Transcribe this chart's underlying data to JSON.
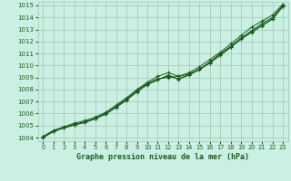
{
  "title": "Graphe pression niveau de la mer (hPa)",
  "bg_color": "#caf0e4",
  "plot_bg": "#caf0e4",
  "grid_color": "#aaccbb",
  "line_color": "#1a5c1a",
  "xlim": [
    -0.5,
    23.5
  ],
  "ylim": [
    1003.7,
    1015.3
  ],
  "yticks": [
    1004,
    1005,
    1006,
    1007,
    1008,
    1009,
    1010,
    1011,
    1012,
    1013,
    1014,
    1015
  ],
  "xticks": [
    0,
    1,
    2,
    3,
    4,
    5,
    6,
    7,
    8,
    9,
    10,
    11,
    12,
    13,
    14,
    15,
    16,
    17,
    18,
    19,
    20,
    21,
    22,
    23
  ],
  "series": [
    [
      1004.1,
      1004.6,
      1004.9,
      1005.2,
      1005.4,
      1005.7,
      1006.1,
      1006.7,
      1007.3,
      1008.0,
      1008.6,
      1009.1,
      1009.4,
      1009.1,
      1009.4,
      1009.9,
      1010.5,
      1011.1,
      1011.8,
      1012.5,
      1013.2,
      1013.7,
      1014.2,
      1015.1
    ],
    [
      1004.05,
      1004.55,
      1004.85,
      1005.1,
      1005.3,
      1005.6,
      1006.0,
      1006.6,
      1007.2,
      1007.9,
      1008.5,
      1008.9,
      1009.0,
      1009.1,
      1009.3,
      1009.7,
      1010.3,
      1011.0,
      1011.6,
      1012.3,
      1012.9,
      1013.5,
      1014.0,
      1015.0
    ],
    [
      1004.0,
      1004.5,
      1004.8,
      1005.05,
      1005.25,
      1005.55,
      1005.95,
      1006.5,
      1007.1,
      1007.8,
      1008.4,
      1008.8,
      1009.2,
      1008.85,
      1009.2,
      1009.65,
      1010.2,
      1010.85,
      1011.5,
      1012.2,
      1012.75,
      1013.3,
      1013.85,
      1014.9
    ],
    [
      1004.02,
      1004.52,
      1004.82,
      1005.07,
      1005.28,
      1005.58,
      1005.98,
      1006.55,
      1007.15,
      1007.85,
      1008.45,
      1008.85,
      1009.1,
      1008.9,
      1009.25,
      1009.7,
      1010.25,
      1010.9,
      1011.55,
      1012.25,
      1012.8,
      1013.35,
      1013.9,
      1014.95
    ]
  ]
}
